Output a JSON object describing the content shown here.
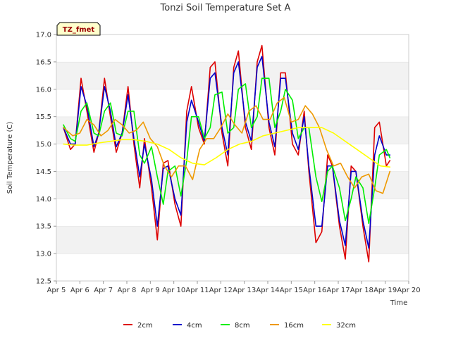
{
  "chart_data": {
    "type": "line",
    "title": "Tonzi Soil Temperature Set A",
    "xlabel": "Time",
    "ylabel": "Soil Temperature (C)",
    "badge": "TZ_fmet",
    "x_ticks": [
      "Apr 5",
      "Apr 6",
      "Apr 7",
      "Apr 8",
      "Apr 9",
      "Apr 10",
      "Apr 11",
      "Apr 12",
      "Apr 13",
      "Apr 14",
      "Apr 15",
      "Apr 16",
      "Apr 17",
      "Apr 18",
      "Apr 19",
      "Apr 20"
    ],
    "xlim": [
      5,
      20
    ],
    "ylim": [
      12.5,
      17.0
    ],
    "y_ticks": [
      "12.5",
      "13.0",
      "13.5",
      "14.0",
      "14.5",
      "15.0",
      "15.5",
      "16.0",
      "16.5",
      "17.0"
    ],
    "grid": "horizontal bands",
    "legend_position": "bottom",
    "series": [
      {
        "name": "2cm",
        "color": "#dd0000",
        "x": [
          5.3,
          5.6,
          5.8,
          6.05,
          6.3,
          6.6,
          6.8,
          7.05,
          7.3,
          7.55,
          7.8,
          8.05,
          8.3,
          8.55,
          8.75,
          9.05,
          9.3,
          9.55,
          9.75,
          10.05,
          10.3,
          10.55,
          10.75,
          11.05,
          11.3,
          11.55,
          11.75,
          12.05,
          12.3,
          12.55,
          12.75,
          13.05,
          13.3,
          13.55,
          13.75,
          14.05,
          14.3,
          14.55,
          14.75,
          15.05,
          15.3,
          15.55,
          15.75,
          16.05,
          16.3,
          16.55,
          16.75,
          17.05,
          17.3,
          17.55,
          17.75,
          18.05,
          18.3,
          18.55,
          18.75,
          19.05,
          19.2
        ],
        "values": [
          15.3,
          14.9,
          15.0,
          16.2,
          15.6,
          14.85,
          15.2,
          16.2,
          15.5,
          14.85,
          15.2,
          16.05,
          15.0,
          14.2,
          15.1,
          14.2,
          13.25,
          14.65,
          14.7,
          13.9,
          13.5,
          15.6,
          16.05,
          15.3,
          15.0,
          16.4,
          16.5,
          15.2,
          14.6,
          16.4,
          16.7,
          15.3,
          14.9,
          16.5,
          16.8,
          15.3,
          14.8,
          16.3,
          16.3,
          15.0,
          14.8,
          15.6,
          14.5,
          13.2,
          13.4,
          14.8,
          14.6,
          13.5,
          12.9,
          14.6,
          14.5,
          13.5,
          12.85,
          15.3,
          15.4,
          14.6,
          14.7
        ]
      },
      {
        "name": "4cm",
        "color": "#0000cc",
        "x": [
          5.3,
          5.6,
          5.8,
          6.05,
          6.3,
          6.6,
          6.8,
          7.05,
          7.3,
          7.55,
          7.8,
          8.05,
          8.3,
          8.55,
          8.75,
          9.05,
          9.3,
          9.55,
          9.75,
          10.05,
          10.3,
          10.55,
          10.75,
          11.05,
          11.3,
          11.55,
          11.75,
          12.05,
          12.3,
          12.55,
          12.75,
          13.05,
          13.3,
          13.55,
          13.75,
          14.05,
          14.3,
          14.55,
          14.75,
          15.05,
          15.3,
          15.55,
          15.75,
          16.05,
          16.3,
          16.55,
          16.75,
          17.05,
          17.3,
          17.55,
          17.75,
          18.05,
          18.3,
          18.55,
          18.75,
          19.05,
          19.2
        ],
        "values": [
          15.3,
          15.0,
          15.0,
          16.05,
          15.7,
          14.95,
          15.2,
          16.05,
          15.6,
          14.95,
          15.2,
          15.9,
          15.1,
          14.4,
          15.0,
          14.35,
          13.5,
          14.55,
          14.6,
          14.0,
          13.7,
          15.4,
          15.8,
          15.4,
          15.05,
          16.2,
          16.3,
          15.3,
          14.8,
          16.3,
          16.5,
          15.4,
          15.05,
          16.4,
          16.6,
          15.4,
          14.95,
          16.2,
          16.2,
          15.2,
          14.9,
          15.5,
          14.6,
          13.5,
          13.5,
          14.6,
          14.6,
          13.6,
          13.15,
          14.5,
          14.5,
          13.6,
          13.1,
          14.8,
          15.15,
          14.8,
          14.8
        ]
      },
      {
        "name": "8cm",
        "color": "#00ee00",
        "x": [
          5.3,
          5.6,
          5.8,
          6.05,
          6.3,
          6.6,
          6.8,
          7.05,
          7.3,
          7.55,
          7.8,
          8.05,
          8.3,
          8.55,
          8.75,
          9.05,
          9.3,
          9.55,
          9.75,
          10.05,
          10.3,
          10.55,
          10.75,
          11.05,
          11.3,
          11.55,
          11.75,
          12.05,
          12.3,
          12.55,
          12.75,
          13.05,
          13.3,
          13.55,
          13.75,
          14.05,
          14.3,
          14.55,
          14.75,
          15.05,
          15.3,
          15.55,
          15.75,
          16.05,
          16.3,
          16.55,
          16.75,
          17.05,
          17.3,
          17.55,
          17.75,
          18.05,
          18.3,
          18.55,
          18.75,
          19.05,
          19.2
        ],
        "values": [
          15.35,
          15.1,
          15.05,
          15.6,
          15.75,
          15.2,
          15.15,
          15.6,
          15.75,
          15.2,
          15.15,
          15.6,
          15.6,
          14.8,
          14.65,
          14.95,
          14.4,
          13.9,
          14.5,
          14.6,
          14.05,
          14.7,
          15.5,
          15.5,
          15.1,
          15.3,
          15.9,
          15.95,
          15.2,
          15.3,
          16.0,
          16.1,
          15.3,
          15.5,
          16.2,
          16.2,
          15.3,
          15.6,
          16.0,
          15.8,
          15.1,
          15.3,
          15.3,
          14.4,
          13.95,
          14.5,
          14.6,
          14.2,
          13.6,
          14.0,
          14.4,
          14.2,
          13.55,
          14.2,
          14.8,
          14.9,
          14.75
        ]
      },
      {
        "name": "16cm",
        "color": "#ee9900",
        "x": [
          5.3,
          5.7,
          6.0,
          6.3,
          6.6,
          6.9,
          7.2,
          7.5,
          7.8,
          8.1,
          8.4,
          8.7,
          9.0,
          9.3,
          9.6,
          9.9,
          10.2,
          10.5,
          10.8,
          11.1,
          11.4,
          11.7,
          12.0,
          12.3,
          12.6,
          12.9,
          13.2,
          13.5,
          13.8,
          14.1,
          14.4,
          14.7,
          15.0,
          15.3,
          15.6,
          15.9,
          16.2,
          16.5,
          16.8,
          17.1,
          17.4,
          17.7,
          18.0,
          18.3,
          18.6,
          18.9,
          19.2
        ],
        "values": [
          15.3,
          15.15,
          15.2,
          15.45,
          15.35,
          15.15,
          15.25,
          15.45,
          15.35,
          15.2,
          15.25,
          15.4,
          15.1,
          14.95,
          14.6,
          14.4,
          14.6,
          14.6,
          14.35,
          14.9,
          15.1,
          15.1,
          15.3,
          15.55,
          15.35,
          15.2,
          15.6,
          15.7,
          15.45,
          15.45,
          15.75,
          15.85,
          15.4,
          15.45,
          15.7,
          15.55,
          15.3,
          14.9,
          14.6,
          14.65,
          14.4,
          14.2,
          14.4,
          14.45,
          14.15,
          14.1,
          14.5
        ]
      },
      {
        "name": "32cm",
        "color": "#ffff00",
        "x": [
          5.3,
          5.8,
          6.3,
          6.8,
          7.3,
          7.8,
          8.3,
          8.8,
          9.3,
          9.8,
          10.3,
          10.8,
          11.3,
          11.8,
          12.3,
          12.8,
          13.3,
          13.8,
          14.3,
          14.8,
          15.3,
          15.8,
          16.3,
          16.8,
          17.3,
          17.8,
          18.3,
          18.8,
          19.2
        ],
        "values": [
          15.0,
          14.98,
          14.98,
          15.02,
          15.05,
          15.08,
          15.08,
          15.05,
          15.0,
          14.9,
          14.75,
          14.65,
          14.62,
          14.75,
          14.9,
          15.0,
          15.05,
          15.15,
          15.2,
          15.25,
          15.3,
          15.3,
          15.3,
          15.2,
          15.05,
          14.9,
          14.75,
          14.6,
          14.58
        ]
      }
    ]
  }
}
